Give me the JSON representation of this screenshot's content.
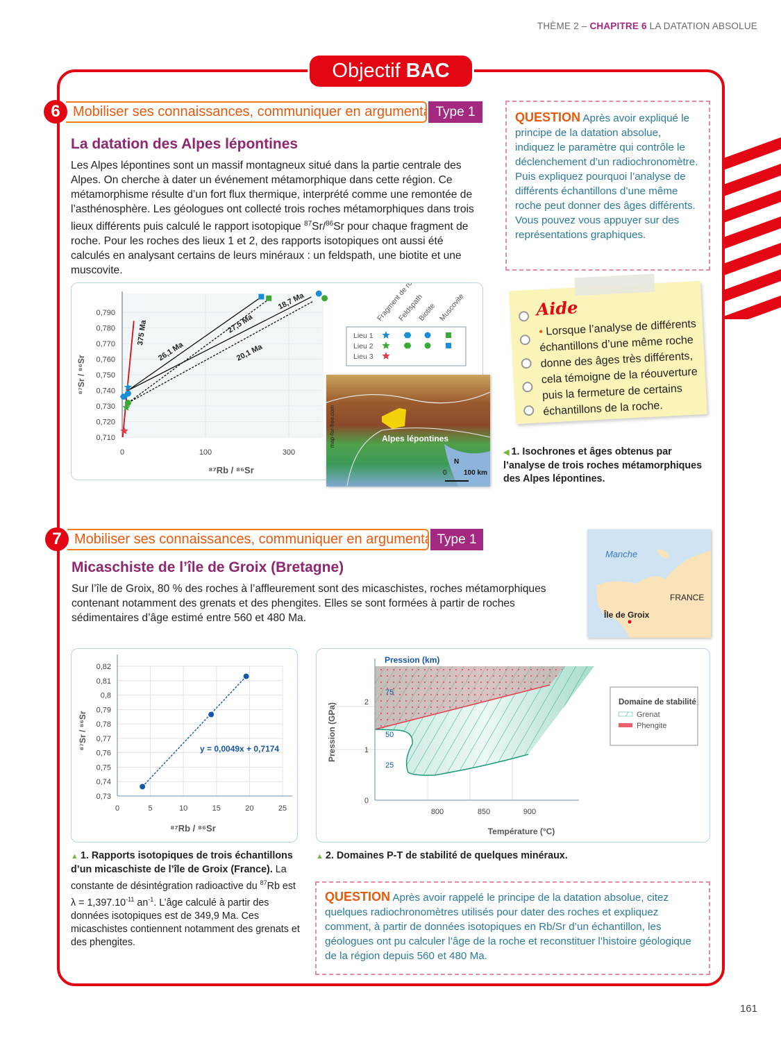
{
  "header": {
    "theme": "THÈME 2 – ",
    "chapter": "CHAPITRE 6",
    "chapter_title": " LA DATATION ABSOLUE"
  },
  "badge": {
    "prefix": "Objectif ",
    "bold": "BAC"
  },
  "ex6": {
    "number": "6",
    "banner": "Mobiliser ses connaissances, communiquer en argumentant",
    "type": "Type 1",
    "title": "La datation des Alpes lépontines",
    "text_a": "Les Alpes lépontines sont un massif montagneux situé dans la partie centrale des Alpes. On cherche à dater un événement métamorphique dans cette région. Ce métamorphisme résulte d’un fort flux thermique, interprété comme une remontée de l’asthénosphère. Les géologues ont collecté trois roches métamorphiques dans trois lieux différents puis calculé le rapport isotopique ",
    "text_sup1": "87",
    "text_mid": "Sr/",
    "text_sup2": "86",
    "text_b": "Sr pour chaque fragment de roche. Pour les roches des lieux 1 et 2, des rapports isotopiques ont aussi été calculés en analysant certains de leurs minéraux : un feldspath, une biotite et une muscovite.",
    "question_label": "QUESTION",
    "question": " Après avoir expliqué le principe de la datation absolue, indiquez le paramètre qui contrôle le déclenchement d’un radiochronomètre. Puis expliquez pourquoi l’analyse de différents échantillons d’une même roche peut donner des âges différents. Vous pouvez vous appuyer sur des représentations graphiques.",
    "aide": {
      "title": "Aide",
      "text": "Lorsque l’analyse de différents échantillons d’une même roche donne des âges très différents, cela témoigne de la réouverture puis la fermeture de certains échantillons de la roche."
    },
    "caption": "1. Isochrones et âges obtenus par l’analyse de trois roches métamorphiques des Alpes lépontines.",
    "map": {
      "label": "Alpes lépontines",
      "credit": "map-for-free.com",
      "north": "N",
      "scale_0": "0",
      "scale": "100 km"
    }
  },
  "chart_isochrons": {
    "type": "scatter",
    "xlabel": "⁸⁷Rb / ⁸⁶Sr",
    "ylabel": "⁸⁷Sr / ⁸⁶Sr",
    "x_ticks": [
      "0",
      "100",
      "300"
    ],
    "y_ticks": [
      "0,710",
      "0,720",
      "0,730",
      "0,740",
      "0,750",
      "0,760",
      "0,770",
      "0,780",
      "0,790"
    ],
    "ylim": [
      0.71,
      0.8
    ],
    "legend": {
      "columns": [
        "Fragment de roche",
        "Feldspath",
        "Biotite",
        "Muscovite"
      ],
      "rows": [
        "Lieu 1",
        "Lieu 2",
        "Lieu 3"
      ]
    },
    "colors": {
      "lieu1": "#1a8fd6",
      "lieu2": "#3aa935",
      "lieu3": "#e8394a",
      "isochron_375": "#e30613"
    },
    "points": [
      {
        "lieu": "Lieu 1",
        "sample": "Fragment de roche",
        "shape": "star",
        "color": "#1a8fd6",
        "x": 7,
        "y": 0.742
      },
      {
        "lieu": "Lieu 1",
        "sample": "Feldspath",
        "shape": "hexagon",
        "color": "#1a8fd6",
        "x": 2,
        "y": 0.736
      },
      {
        "lieu": "Lieu 1",
        "sample": "Biotite",
        "shape": "circle",
        "color": "#1a8fd6",
        "x": 7,
        "y": 0.738
      },
      {
        "lieu": "Lieu 1",
        "sample": "Biotite",
        "shape": "circle",
        "color": "#1a8fd6",
        "x": 372,
        "y": 0.802
      },
      {
        "lieu": "Lieu 1",
        "sample": "Muscovite",
        "shape": "square",
        "color": "#3aa935",
        "x": 252,
        "y": 0.799
      },
      {
        "lieu": "Lieu 2",
        "sample": "Fragment de roche",
        "shape": "star",
        "color": "#3aa935",
        "x": 5,
        "y": 0.729
      },
      {
        "lieu": "Lieu 2",
        "sample": "Feldspath",
        "shape": "circle",
        "color": "#3aa935",
        "x": 7,
        "y": 0.732
      },
      {
        "lieu": "Lieu 2",
        "sample": "Biotite",
        "shape": "circle",
        "color": "#3aa935",
        "x": 386,
        "y": 0.799
      },
      {
        "lieu": "Lieu 2",
        "sample": "Muscovite",
        "shape": "square",
        "color": "#1a8fd6",
        "x": 234,
        "y": 0.8
      },
      {
        "lieu": "Lieu 3",
        "sample": "Fragment de roche",
        "shape": "star",
        "color": "#e8394a",
        "x": 2.5,
        "y": 0.714
      }
    ],
    "isochrons": [
      {
        "label": "375 Ma",
        "style": "red",
        "x": [
          0.6,
          14
        ],
        "y": [
          0.71,
          0.7845
        ]
      },
      {
        "label": "26,1 Ma",
        "style": "solid",
        "x": [
          7,
          234
        ],
        "y": [
          0.74,
          0.7998
        ]
      },
      {
        "label": "27,5 Ma",
        "style": "dashed",
        "x": [
          7,
          250
        ],
        "y": [
          0.732,
          0.798
        ]
      },
      {
        "label": "18,7 Ma",
        "style": "solid",
        "x": [
          7,
          354
        ],
        "y": [
          0.74,
          0.7998
        ]
      },
      {
        "label": "20,1 Ma",
        "style": "dashed",
        "x": [
          7,
          358
        ],
        "y": [
          0.732,
          0.797
        ]
      }
    ]
  },
  "ex7": {
    "number": "7",
    "banner": "Mobiliser ses connaissances, communiquer en argumentant",
    "type": "Type 1",
    "title": "Micaschiste de l’île de Groix (Bretagne)",
    "text": "Sur l’île de Groix, 80 % des roches à l’affleurement sont des micaschistes, roches métamorphiques contenant notamment des grenats et des phengites. Elles se sont formées à partir de roches sédimentaires d’âge estimé entre 560 et 480 Ma.",
    "map": {
      "sea": "Manche",
      "country": "FRANCE",
      "island": "Île de Groix"
    },
    "caption1_bold": "1. Rapports isotopiques de trois échantillons d’un micaschiste de l’île de Groix (France).",
    "caption1_a": " La constante de désintégration radioactive du ",
    "caption1_sup": "87",
    "caption1_b": "Rb est λ = 1,397.10",
    "caption1_exp": "-11",
    "caption1_c": " an",
    "caption1_exp2": "-1",
    "caption1_d": ". L’âge calculé à partir des données isotopiques est de 349,9 Ma. Ces micaschistes contiennent notamment des grenats et des phengites.",
    "caption2": "2. Domaines P-T de stabilité de quelques minéraux.",
    "question_label": "QUESTION",
    "question": " Après avoir rappelé le principe de la datation absolue, citez quelques radiochronomètres utilisés pour dater des roches et expliquez comment, à partir de données isotopiques en Rb/Sr d’un échantillon, les géologues ont pu calculer l’âge de la roche et reconstituer l’histoire géologique de la région depuis 560 et 480 Ma."
  },
  "chart_groix": {
    "type": "scatter",
    "xlabel": "⁸⁷Rb / ⁸⁶Sr",
    "ylabel": "⁸⁷Sr / ⁸⁶Sr",
    "x_ticks": [
      "0",
      "5",
      "10",
      "15",
      "20",
      "25"
    ],
    "y_ticks": [
      "0,73",
      "0,74",
      "0,75",
      "0,76",
      "0,77",
      "0,78",
      "0,79",
      "0,8",
      "0,81",
      "0,82"
    ],
    "xlim": [
      0,
      25
    ],
    "ylim": [
      0.73,
      0.82
    ],
    "x": [
      3.8,
      14.2,
      19.5
    ],
    "y": [
      0.7365,
      0.7865,
      0.813
    ],
    "trendline": "y = 0,0049x + 0,7174",
    "color": "#1556a8"
  },
  "chart_pt": {
    "type": "area",
    "title": "Pression (km)",
    "xlabel": "Température (°C)",
    "ylabel": "Pression (GPa)",
    "x_ticks": [
      "800",
      "850",
      "900"
    ],
    "y_ticks": [
      "0",
      "1",
      "2"
    ],
    "depth_ticks": [
      "25",
      "50",
      "75"
    ],
    "legend_title": "Domaine de stabilité",
    "series": [
      {
        "name": "Grenat",
        "color": "#2aa889"
      },
      {
        "name": "Phengite",
        "color": "#e8394a"
      }
    ]
  },
  "page_number": "161"
}
